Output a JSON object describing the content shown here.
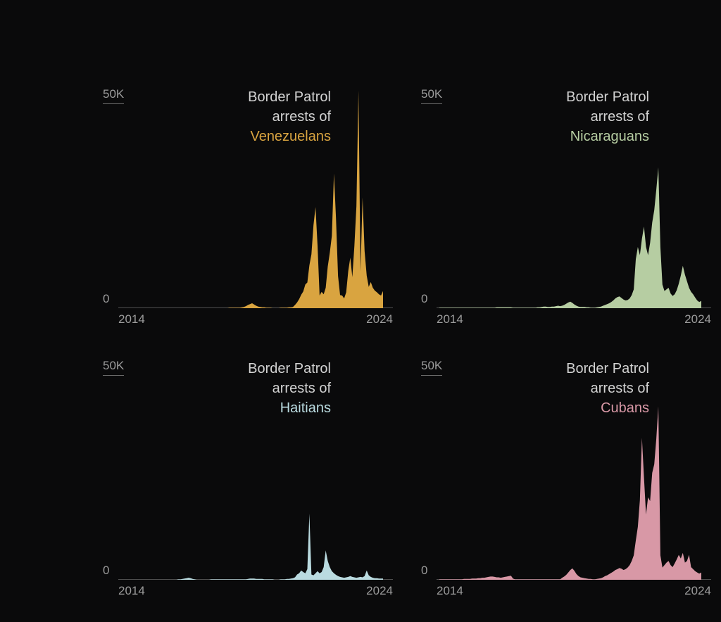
{
  "page": {
    "background": "#0a0a0b"
  },
  "chart_data": [
    {
      "type": "area",
      "title_lines": [
        "Border Patrol",
        "arrests of"
      ],
      "nationality": "Venezuelans",
      "color": "#d9a440",
      "y_axis": {
        "top_label": "50K",
        "zero_label": "0",
        "ylim_thousands": [
          0,
          50
        ]
      },
      "x_axis": {
        "start_label": "2014",
        "end_label": "2024",
        "start_year": 2014,
        "end_year": 2024,
        "interval": "monthly"
      },
      "values_unit": "thousands of monthly arrests",
      "values_thousands": [
        0,
        0,
        0,
        0,
        0,
        0,
        0,
        0,
        0,
        0,
        0,
        0,
        0,
        0,
        0,
        0,
        0,
        0,
        0,
        0,
        0,
        0,
        0,
        0,
        0,
        0,
        0,
        0,
        0,
        0,
        0,
        0,
        0,
        0,
        0,
        0,
        0,
        0,
        0,
        0,
        0,
        0,
        0,
        0,
        0,
        0,
        0,
        0,
        0,
        0,
        0,
        0,
        0,
        0.1,
        0.1,
        0.1,
        0.1,
        0.1,
        0.1,
        0.2,
        0.3,
        0.5,
        0.8,
        1.0,
        1.2,
        0.9,
        0.6,
        0.4,
        0.3,
        0.2,
        0.2,
        0.1,
        0.1,
        0.1,
        0,
        0,
        0,
        0,
        0.1,
        0.1,
        0.1,
        0.1,
        0.2,
        0.2,
        0.3,
        0.8,
        1.4,
        2.2,
        3.3,
        4.1,
        5.8,
        6.3,
        10.5,
        13.2,
        20.3,
        24.8,
        15.3,
        3.1,
        4.0,
        3.4,
        5.0,
        10.2,
        13.6,
        17.7,
        33.0,
        22.0,
        7.9,
        3.2,
        3.1,
        2.4,
        3.9,
        9.1,
        12.4,
        7.6,
        15.2,
        25.0,
        53.3,
        9.0,
        27.1,
        14.0,
        8.0,
        5.2,
        6.4,
        5.0,
        4.3,
        3.9,
        3.4,
        3.1,
        4.2
      ]
    },
    {
      "type": "area",
      "title_lines": [
        "Border Patrol",
        "arrests of"
      ],
      "nationality": "Nicaraguans",
      "color": "#b6cda2",
      "y_axis": {
        "top_label": "50K",
        "zero_label": "0",
        "ylim_thousands": [
          0,
          50
        ]
      },
      "x_axis": {
        "start_label": "2014",
        "end_label": "2024",
        "start_year": 2014,
        "end_year": 2024,
        "interval": "monthly"
      },
      "values_unit": "thousands of monthly arrests",
      "values_thousands": [
        0.1,
        0.1,
        0.1,
        0.1,
        0.1,
        0.1,
        0.1,
        0.1,
        0.1,
        0.1,
        0.1,
        0.1,
        0.1,
        0.1,
        0.1,
        0.1,
        0.1,
        0.1,
        0.1,
        0.1,
        0.1,
        0.1,
        0.1,
        0.1,
        0.1,
        0.1,
        0.1,
        0.1,
        0.2,
        0.2,
        0.2,
        0.2,
        0.2,
        0.2,
        0.2,
        0.2,
        0.1,
        0.1,
        0.1,
        0.1,
        0.1,
        0.1,
        0.1,
        0.1,
        0.1,
        0.1,
        0.1,
        0.1,
        0.2,
        0.2,
        0.3,
        0.4,
        0.4,
        0.3,
        0.3,
        0.4,
        0.4,
        0.5,
        0.6,
        0.5,
        0.6,
        0.8,
        1.1,
        1.4,
        1.6,
        1.3,
        0.9,
        0.6,
        0.4,
        0.3,
        0.3,
        0.3,
        0.2,
        0.2,
        0.1,
        0.1,
        0.1,
        0.2,
        0.3,
        0.4,
        0.6,
        0.8,
        1.0,
        1.2,
        1.5,
        1.9,
        2.4,
        2.7,
        2.9,
        2.5,
        2.1,
        1.9,
        2.0,
        2.4,
        3.2,
        4.6,
        12.0,
        15.0,
        13.0,
        17.0,
        20.0,
        15.0,
        13.0,
        16.0,
        21.0,
        24.0,
        29.0,
        34.5,
        15.0,
        5.8,
        4.2,
        4.6,
        5.0,
        3.6,
        3.0,
        3.4,
        4.4,
        6.0,
        8.0,
        10.4,
        8.2,
        6.6,
        5.0,
        4.0,
        3.4,
        2.6,
        1.9,
        1.5,
        1.8
      ]
    },
    {
      "type": "area",
      "title_lines": [
        "Border Patrol",
        "arrests of"
      ],
      "nationality": "Haitians",
      "color": "#badbe0",
      "y_axis": {
        "top_label": "50K",
        "zero_label": "0",
        "ylim_thousands": [
          0,
          50
        ]
      },
      "x_axis": {
        "start_label": "2014",
        "end_label": "2024",
        "start_year": 2014,
        "end_year": 2024,
        "interval": "monthly"
      },
      "values_unit": "thousands of monthly arrests",
      "values_thousands": [
        0,
        0,
        0,
        0,
        0,
        0,
        0,
        0,
        0,
        0,
        0,
        0,
        0,
        0,
        0,
        0,
        0,
        0,
        0,
        0,
        0,
        0,
        0,
        0,
        0,
        0,
        0,
        0,
        0.1,
        0.1,
        0.2,
        0.3,
        0.4,
        0.5,
        0.4,
        0.2,
        0.1,
        0,
        0,
        0,
        0,
        0,
        0,
        0,
        0.1,
        0.1,
        0.1,
        0.1,
        0.1,
        0.1,
        0.1,
        0.1,
        0.1,
        0.1,
        0.1,
        0.1,
        0.1,
        0.1,
        0.1,
        0.1,
        0.1,
        0.1,
        0.2,
        0.3,
        0.3,
        0.3,
        0.2,
        0.2,
        0.2,
        0.2,
        0.1,
        0.1,
        0.1,
        0.1,
        0.1,
        0,
        0,
        0,
        0.1,
        0.1,
        0.1,
        0.2,
        0.2,
        0.3,
        0.4,
        0.6,
        1.3,
        1.6,
        2.3,
        1.9,
        1.6,
        2.6,
        16.2,
        1.3,
        1.1,
        1.6,
        2.1,
        1.6,
        1.9,
        3.1,
        7.2,
        4.6,
        3.1,
        2.1,
        1.6,
        1.2,
        0.9,
        0.7,
        0.6,
        0.5,
        0.6,
        0.7,
        0.9,
        0.7,
        0.6,
        0.5,
        0.6,
        0.7,
        0.6,
        0.9,
        2.3,
        1.1,
        0.7,
        0.5,
        0.4,
        0.4,
        0.3,
        0.3,
        0.3
      ]
    },
    {
      "type": "area",
      "title_lines": [
        "Border Patrol",
        "arrests of"
      ],
      "nationality": "Cubans",
      "color": "#d898a6",
      "y_axis": {
        "top_label": "50K",
        "zero_label": "0",
        "ylim_thousands": [
          0,
          50
        ]
      },
      "x_axis": {
        "start_label": "2014",
        "end_label": "2024",
        "start_year": 2014,
        "end_year": 2024,
        "interval": "monthly"
      },
      "values_unit": "thousands of monthly arrests",
      "values_thousands": [
        0.1,
        0.1,
        0.1,
        0.1,
        0.1,
        0.1,
        0.1,
        0.1,
        0.1,
        0.1,
        0.1,
        0.1,
        0.2,
        0.2,
        0.2,
        0.2,
        0.3,
        0.3,
        0.3,
        0.4,
        0.4,
        0.5,
        0.5,
        0.6,
        0.7,
        0.8,
        0.8,
        0.7,
        0.6,
        0.6,
        0.5,
        0.6,
        0.7,
        0.8,
        0.9,
        1.0,
        0.3,
        0.1,
        0.1,
        0.1,
        0.1,
        0.1,
        0.1,
        0.1,
        0.1,
        0.1,
        0.1,
        0.1,
        0.1,
        0.1,
        0.1,
        0.1,
        0.1,
        0.1,
        0.1,
        0.1,
        0.1,
        0.1,
        0.1,
        0.1,
        0.5,
        0.8,
        1.2,
        1.8,
        2.4,
        2.8,
        2.2,
        1.4,
        0.9,
        0.6,
        0.5,
        0.4,
        0.3,
        0.2,
        0.2,
        0.1,
        0.1,
        0.2,
        0.3,
        0.4,
        0.6,
        0.9,
        1.1,
        1.4,
        1.7,
        2.0,
        2.4,
        2.6,
        2.9,
        2.7,
        2.4,
        2.6,
        3.0,
        3.6,
        4.6,
        6.0,
        9.6,
        13.0,
        19.5,
        34.8,
        25.1,
        16.0,
        20.2,
        19.3,
        26.2,
        28.3,
        34.5,
        42.5,
        6.0,
        3.0,
        3.6,
        4.2,
        4.6,
        3.6,
        3.1,
        4.0,
        5.0,
        6.1,
        5.2,
        6.6,
        4.2,
        4.6,
        6.1,
        3.1,
        2.6,
        2.1,
        1.8,
        1.5,
        1.8
      ]
    }
  ]
}
